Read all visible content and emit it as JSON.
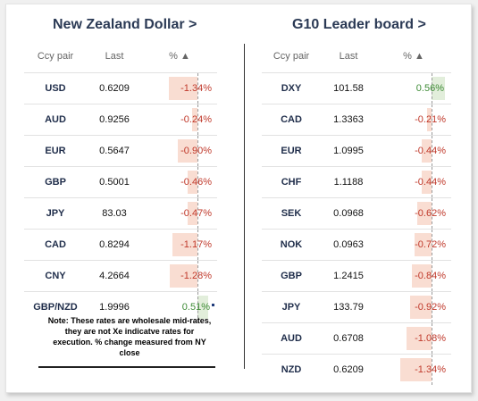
{
  "nzd_panel": {
    "title": "New Zealand Dollar >",
    "headers": {
      "pair": "Ccy pair",
      "last": "Last",
      "pct": "% ▲"
    },
    "rows": [
      {
        "pair": "USD",
        "last": "0.6209",
        "pct": "-1.34%",
        "value": -1.34
      },
      {
        "pair": "AUD",
        "last": "0.9256",
        "pct": "-0.24%",
        "value": -0.24
      },
      {
        "pair": "EUR",
        "last": "0.5647",
        "pct": "-0.90%",
        "value": -0.9
      },
      {
        "pair": "GBP",
        "last": "0.5001",
        "pct": "-0.46%",
        "value": -0.46
      },
      {
        "pair": "JPY",
        "last": "83.03",
        "pct": "-0.47%",
        "value": -0.47
      },
      {
        "pair": "CAD",
        "last": "0.8294",
        "pct": "-1.17%",
        "value": -1.17
      },
      {
        "pair": "CNY",
        "last": "4.2664",
        "pct": "-1.28%",
        "value": -1.28
      },
      {
        "pair": "GBP/NZD",
        "last": "1.9996",
        "pct": "0.51%",
        "value": 0.51
      }
    ],
    "note": "Note: These rates are wholesale mid-rates, they are not Xe indicatve rates for execution. % change measured from NY close"
  },
  "g10_panel": {
    "title": "G10 Leader board >",
    "headers": {
      "pair": "Ccy pair",
      "last": "Last",
      "pct": "% ▲"
    },
    "rows": [
      {
        "pair": "DXY",
        "last": "101.58",
        "pct": "0.56%",
        "value": 0.56
      },
      {
        "pair": "CAD",
        "last": "1.3363",
        "pct": "-0.21%",
        "value": -0.21
      },
      {
        "pair": "EUR",
        "last": "1.0995",
        "pct": "-0.44%",
        "value": -0.44
      },
      {
        "pair": "CHF",
        "last": "1.1188",
        "pct": "-0.44%",
        "value": -0.44
      },
      {
        "pair": "SEK",
        "last": "0.0968",
        "pct": "-0.62%",
        "value": -0.62
      },
      {
        "pair": "NOK",
        "last": "0.0963",
        "pct": "-0.72%",
        "value": -0.72
      },
      {
        "pair": "GBP",
        "last": "1.2415",
        "pct": "-0.84%",
        "value": -0.84
      },
      {
        "pair": "JPY",
        "last": "133.79",
        "pct": "-0.92%",
        "value": -0.92
      },
      {
        "pair": "AUD",
        "last": "0.6708",
        "pct": "-1.08%",
        "value": -1.08
      },
      {
        "pair": "NZD",
        "last": "0.6209",
        "pct": "-1.34%",
        "value": -1.34
      }
    ]
  },
  "colors": {
    "negative": "#c0392b",
    "positive": "#3d8b35",
    "negative_bar": "#f9ddd2",
    "positive_bar": "#e2eedb"
  }
}
